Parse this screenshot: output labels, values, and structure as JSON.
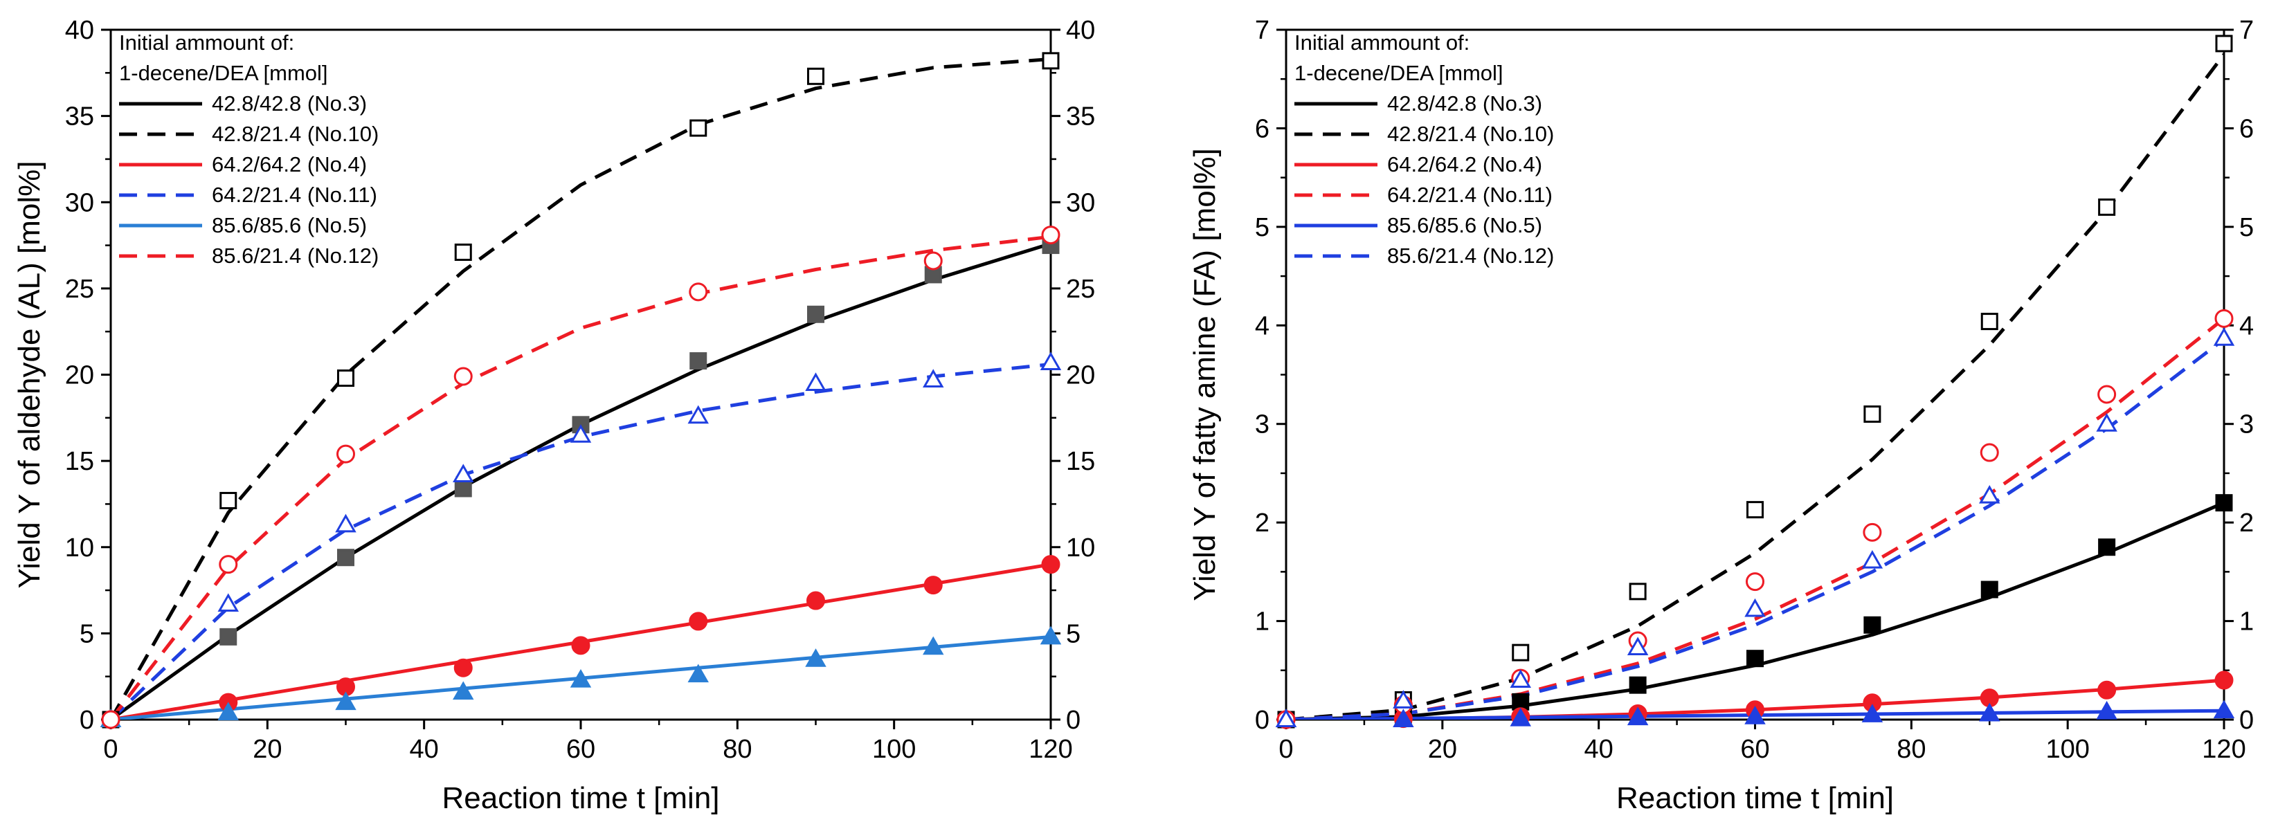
{
  "chart_data": [
    {
      "type": "line",
      "panel": "left",
      "xlabel": "Reaction time t [min]",
      "ylabel": "Yield Y of aldehyde (AL) [mol%]",
      "xlim": [
        0,
        120
      ],
      "ylim": [
        0,
        40
      ],
      "xticks": [
        0,
        20,
        40,
        60,
        80,
        100,
        120
      ],
      "yticks": [
        0,
        5,
        10,
        15,
        20,
        25,
        30,
        35,
        40
      ],
      "y2ticks": [
        0,
        5,
        10,
        15,
        20,
        25,
        30,
        35,
        40
      ],
      "grid": false,
      "legend": {
        "title_line1": "Initial ammount of:",
        "title_line2": "1-decene/DEA [mmol]",
        "placement": "top-left",
        "entries": [
          {
            "label": "42.8/42.8 (No.3)",
            "color": "#000000",
            "dash": "solid"
          },
          {
            "label": "42.8/21.4 (No.10)",
            "color": "#000000",
            "dash": "dashed"
          },
          {
            "label": "64.2/64.2 (No.4)",
            "color": "#ee1c25",
            "dash": "solid"
          },
          {
            "label": "64.2/21.4 (No.11)",
            "color": "#1f3fe0",
            "dash": "dashed"
          },
          {
            "label": "85.6/85.6 (No.5)",
            "color": "#2a7fd5",
            "dash": "solid"
          },
          {
            "label": "85.6/21.4 (No.12)",
            "color": "#ee1c25",
            "dash": "dashed"
          }
        ]
      },
      "series": [
        {
          "name": "42.8/42.8 (No.3)",
          "color": "#000000",
          "dash": "solid",
          "marker": "square-filled",
          "markerColor": "#555555",
          "x": [
            0,
            15,
            30,
            45,
            60,
            75,
            90,
            105,
            120
          ],
          "y": [
            0,
            4.8,
            9.4,
            13.4,
            17.1,
            20.8,
            23.5,
            25.8,
            27.5
          ],
          "fit": [
            [
              0,
              0
            ],
            [
              15,
              4.9
            ],
            [
              30,
              9.4
            ],
            [
              45,
              13.5
            ],
            [
              60,
              17.1
            ],
            [
              75,
              20.3
            ],
            [
              90,
              23.1
            ],
            [
              105,
              25.5
            ],
            [
              120,
              27.6
            ]
          ]
        },
        {
          "name": "42.8/21.4 (No.10)",
          "color": "#000000",
          "dash": "dashed",
          "marker": "square-open",
          "markerColor": "#000000",
          "x": [
            0,
            15,
            30,
            45,
            60,
            75,
            90,
            105,
            120
          ],
          "y": [
            0,
            12.7,
            19.8,
            27.1,
            null,
            34.3,
            37.3,
            null,
            38.2
          ],
          "fit": [
            [
              0,
              0
            ],
            [
              15,
              12
            ],
            [
              30,
              20
            ],
            [
              45,
              26
            ],
            [
              60,
              31
            ],
            [
              75,
              34.5
            ],
            [
              90,
              36.6
            ],
            [
              105,
              37.8
            ],
            [
              120,
              38.3
            ]
          ]
        },
        {
          "name": "64.2/64.2 (No.4)",
          "color": "#ee1c25",
          "dash": "solid",
          "marker": "circle-filled",
          "markerColor": "#ee1c25",
          "x": [
            0,
            15,
            30,
            45,
            60,
            75,
            90,
            105,
            120
          ],
          "y": [
            0,
            1.0,
            1.9,
            3.0,
            4.3,
            5.7,
            6.9,
            7.8,
            9.0
          ],
          "fit": [
            [
              0,
              0
            ],
            [
              120,
              9.0
            ]
          ]
        },
        {
          "name": "64.2/21.4 (No.11)",
          "color": "#1f3fe0",
          "dash": "dashed",
          "marker": "triangle-open",
          "markerColor": "#1f3fe0",
          "x": [
            0,
            15,
            30,
            45,
            60,
            75,
            90,
            105,
            120
          ],
          "y": [
            0,
            6.7,
            11.3,
            14.2,
            16.5,
            17.6,
            19.5,
            19.7,
            20.7
          ],
          "fit": [
            [
              0,
              0
            ],
            [
              15,
              6.5
            ],
            [
              30,
              11
            ],
            [
              45,
              14.2
            ],
            [
              60,
              16.4
            ],
            [
              75,
              17.9
            ],
            [
              90,
              19.0
            ],
            [
              105,
              19.9
            ],
            [
              120,
              20.6
            ]
          ]
        },
        {
          "name": "85.6/85.6 (No.5)",
          "color": "#2a7fd5",
          "dash": "solid",
          "marker": "triangle-filled",
          "markerColor": "#2a7fd5",
          "x": [
            0,
            15,
            30,
            45,
            60,
            75,
            90,
            105,
            120
          ],
          "y": [
            0,
            0.4,
            1.0,
            1.6,
            2.3,
            2.6,
            3.5,
            4.2,
            4.8
          ],
          "fit": [
            [
              0,
              0
            ],
            [
              120,
              4.8
            ]
          ]
        },
        {
          "name": "85.6/21.4 (No.12)",
          "color": "#ee1c25",
          "dash": "dashed",
          "marker": "circle-open",
          "markerColor": "#ee1c25",
          "x": [
            0,
            15,
            30,
            45,
            60,
            75,
            90,
            105,
            120
          ],
          "y": [
            0,
            9.0,
            15.4,
            19.9,
            null,
            24.8,
            null,
            26.6,
            28.1
          ],
          "fit": [
            [
              0,
              0
            ],
            [
              15,
              8.8
            ],
            [
              30,
              15.1
            ],
            [
              45,
              19.5
            ],
            [
              60,
              22.7
            ],
            [
              75,
              24.7
            ],
            [
              90,
              26.1
            ],
            [
              105,
              27.2
            ],
            [
              120,
              28.0
            ]
          ]
        }
      ]
    },
    {
      "type": "line",
      "panel": "right",
      "xlabel": "Reaction time t [min]",
      "ylabel": "Yield Y of fatty amine (FA) [mol%]",
      "xlim": [
        0,
        120
      ],
      "ylim": [
        0,
        7
      ],
      "xticks": [
        0,
        20,
        40,
        60,
        80,
        100,
        120
      ],
      "yticks": [
        0,
        1,
        2,
        3,
        4,
        5,
        6,
        7
      ],
      "y2ticks": [
        0,
        1,
        2,
        3,
        4,
        5,
        6,
        7
      ],
      "grid": false,
      "legend": {
        "title_line1": "Initial ammount of:",
        "title_line2": "1-decene/DEA [mmol]",
        "placement": "top-left",
        "entries": [
          {
            "label": "42.8/42.8 (No.3)",
            "color": "#000000",
            "dash": "solid"
          },
          {
            "label": "42.8/21.4 (No.10)",
            "color": "#000000",
            "dash": "dashed"
          },
          {
            "label": "64.2/64.2 (No.4)",
            "color": "#ee1c25",
            "dash": "solid"
          },
          {
            "label": "64.2/21.4 (No.11)",
            "color": "#ee1c25",
            "dash": "dashed"
          },
          {
            "label": "85.6/85.6 (No.5)",
            "color": "#1f3fe0",
            "dash": "solid"
          },
          {
            "label": "85.6/21.4 (No.12)",
            "color": "#1f3fe0",
            "dash": "dashed"
          }
        ]
      },
      "series": [
        {
          "name": "42.8/42.8 (No.3)",
          "color": "#000000",
          "dash": "solid",
          "marker": "square-filled",
          "markerColor": "#000000",
          "x": [
            0,
            15,
            30,
            45,
            60,
            75,
            90,
            105,
            120
          ],
          "y": [
            0,
            0.05,
            0.18,
            0.35,
            0.62,
            0.96,
            1.32,
            1.75,
            2.2
          ],
          "fit": [
            [
              0,
              0
            ],
            [
              15,
              0.03
            ],
            [
              30,
              0.14
            ],
            [
              45,
              0.31
            ],
            [
              60,
              0.55
            ],
            [
              75,
              0.86
            ],
            [
              90,
              1.24
            ],
            [
              105,
              1.69
            ],
            [
              120,
              2.2
            ]
          ]
        },
        {
          "name": "42.8/21.4 (No.10)",
          "color": "#000000",
          "dash": "dashed",
          "marker": "square-open",
          "markerColor": "#000000",
          "x": [
            0,
            15,
            30,
            45,
            60,
            75,
            90,
            105,
            120
          ],
          "y": [
            0,
            0.2,
            0.68,
            1.3,
            2.13,
            3.1,
            4.04,
            5.2,
            6.86
          ],
          "fit": [
            [
              0,
              0
            ],
            [
              15,
              0.1
            ],
            [
              30,
              0.42
            ],
            [
              45,
              0.95
            ],
            [
              60,
              1.69
            ],
            [
              75,
              2.64
            ],
            [
              90,
              3.8
            ],
            [
              105,
              5.17
            ],
            [
              120,
              6.75
            ]
          ]
        },
        {
          "name": "64.2/64.2 (No.4)",
          "color": "#ee1c25",
          "dash": "solid",
          "marker": "circle-filled",
          "markerColor": "#ee1c25",
          "x": [
            0,
            15,
            30,
            45,
            60,
            75,
            90,
            105,
            120
          ],
          "y": [
            0,
            0.01,
            0.03,
            0.06,
            0.1,
            0.17,
            0.22,
            0.3,
            0.4
          ],
          "fit": [
            [
              0,
              0
            ],
            [
              15,
              0.006
            ],
            [
              30,
              0.025
            ],
            [
              45,
              0.056
            ],
            [
              60,
              0.1
            ],
            [
              75,
              0.156
            ],
            [
              90,
              0.225
            ],
            [
              105,
              0.306
            ],
            [
              120,
              0.4
            ]
          ]
        },
        {
          "name": "64.2/21.4 (No.11)",
          "color": "#ee1c25",
          "dash": "dashed",
          "marker": "circle-open",
          "markerColor": "#ee1c25",
          "x": [
            0,
            15,
            30,
            45,
            60,
            75,
            90,
            105,
            120
          ],
          "y": [
            0,
            0.15,
            0.42,
            0.8,
            1.4,
            1.9,
            2.71,
            3.3,
            4.07
          ],
          "fit": [
            [
              0,
              0
            ],
            [
              15,
              0.06
            ],
            [
              30,
              0.26
            ],
            [
              45,
              0.57
            ],
            [
              60,
              1.02
            ],
            [
              75,
              1.59
            ],
            [
              90,
              2.29
            ],
            [
              105,
              3.12
            ],
            [
              120,
              4.07
            ]
          ]
        },
        {
          "name": "85.6/85.6 (No.5)",
          "color": "#1f3fe0",
          "dash": "solid",
          "marker": "triangle-filled",
          "markerColor": "#1f3fe0",
          "x": [
            0,
            15,
            30,
            45,
            60,
            75,
            90,
            105,
            120
          ],
          "y": [
            0,
            0.0,
            0.01,
            0.02,
            0.03,
            0.05,
            0.06,
            0.08,
            0.09
          ],
          "fit": [
            [
              0,
              0
            ],
            [
              120,
              0.09
            ]
          ]
        },
        {
          "name": "85.6/21.4 (No.12)",
          "color": "#1f3fe0",
          "dash": "dashed",
          "marker": "triangle-open",
          "markerColor": "#1f3fe0",
          "x": [
            0,
            15,
            30,
            45,
            60,
            75,
            90,
            105,
            120
          ],
          "y": [
            0,
            0.19,
            0.4,
            0.73,
            1.12,
            1.61,
            2.27,
            3.0,
            3.87
          ],
          "fit": [
            [
              0,
              0
            ],
            [
              15,
              0.06
            ],
            [
              30,
              0.24
            ],
            [
              45,
              0.54
            ],
            [
              60,
              0.96
            ],
            [
              75,
              1.5
            ],
            [
              90,
              2.17
            ],
            [
              105,
              2.95
            ],
            [
              120,
              3.86
            ]
          ]
        }
      ]
    }
  ]
}
